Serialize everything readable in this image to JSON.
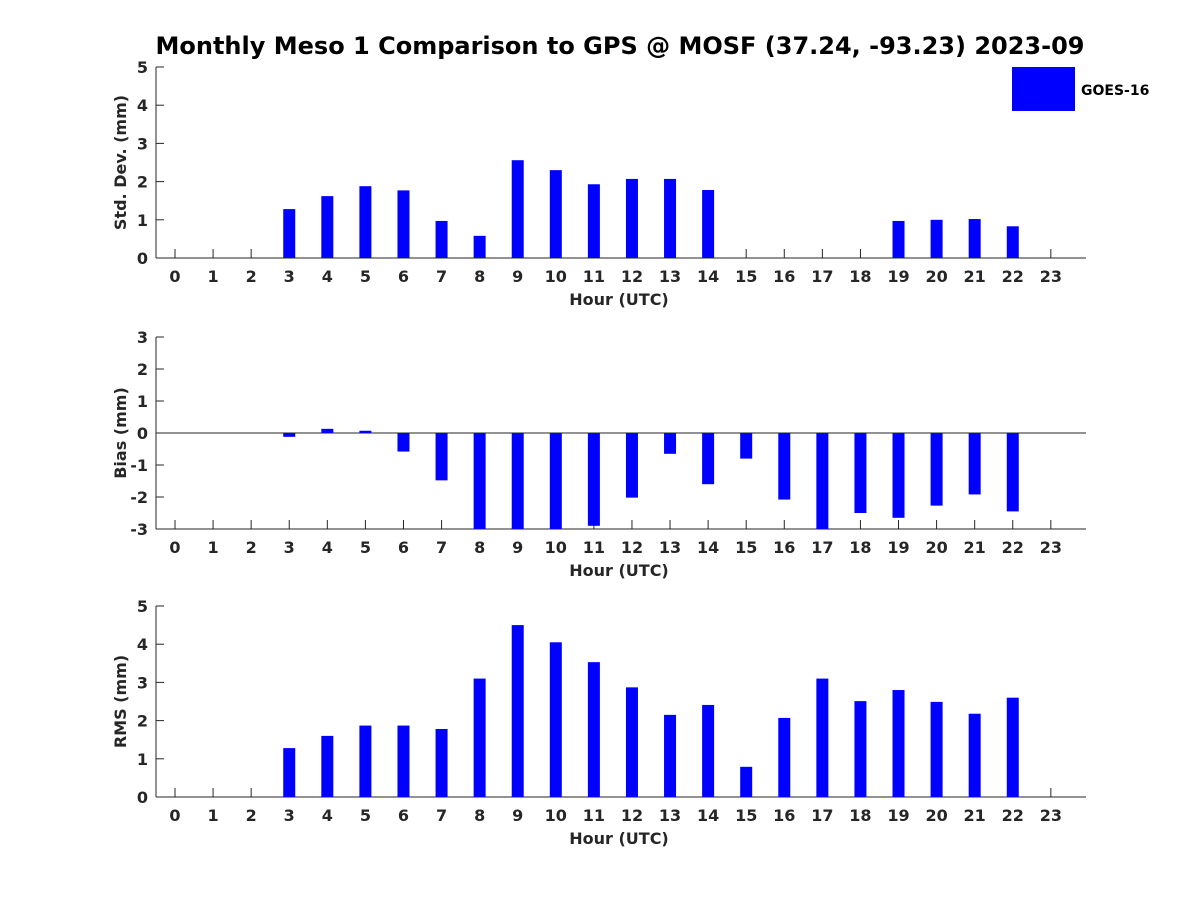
{
  "title": "Monthly Meso 1 Comparison to GPS @ MOSF (37.24, -93.23) 2023-09",
  "legend": {
    "label": "GOES-16",
    "color": "#0000ff"
  },
  "chart_data": [
    {
      "type": "bar",
      "ylabel": "Std. Dev. (mm)",
      "xlabel": "Hour (UTC)",
      "ylim": [
        0,
        5
      ],
      "yticks": [
        "0",
        "1",
        "2",
        "3",
        "4",
        "5"
      ],
      "categories": [
        "0",
        "1",
        "2",
        "3",
        "4",
        "5",
        "6",
        "7",
        "8",
        "9",
        "10",
        "11",
        "12",
        "13",
        "14",
        "15",
        "16",
        "17",
        "18",
        "19",
        "20",
        "21",
        "22",
        "23"
      ],
      "series": [
        {
          "name": "GOES-16",
          "values": [
            null,
            null,
            null,
            1.28,
            1.62,
            1.88,
            1.77,
            0.97,
            0.58,
            2.56,
            2.3,
            1.93,
            2.07,
            2.07,
            1.78,
            null,
            null,
            null,
            null,
            0.97,
            1.0,
            1.02,
            0.83,
            null
          ]
        }
      ],
      "zero_line": false,
      "legend": true
    },
    {
      "type": "bar",
      "ylabel": "Bias (mm)",
      "xlabel": "Hour (UTC)",
      "ylim": [
        -3,
        3
      ],
      "yticks": [
        "-3",
        "-2",
        "-1",
        "0",
        "1",
        "2",
        "3"
      ],
      "categories": [
        "0",
        "1",
        "2",
        "3",
        "4",
        "5",
        "6",
        "7",
        "8",
        "9",
        "10",
        "11",
        "12",
        "13",
        "14",
        "15",
        "16",
        "17",
        "18",
        "19",
        "20",
        "21",
        "22",
        "23"
      ],
      "series": [
        {
          "name": "GOES-16",
          "values": [
            null,
            null,
            null,
            -0.12,
            0.13,
            0.07,
            -0.58,
            -1.48,
            -3.0,
            -3.0,
            -3.0,
            -2.9,
            -2.02,
            -0.65,
            -1.6,
            -0.8,
            -2.08,
            -3.0,
            -2.5,
            -2.65,
            -2.27,
            -1.92,
            -2.45,
            null
          ]
        }
      ],
      "zero_line": true,
      "legend": false
    },
    {
      "type": "bar",
      "ylabel": "RMS (mm)",
      "xlabel": "Hour (UTC)",
      "ylim": [
        0,
        5
      ],
      "yticks": [
        "0",
        "1",
        "2",
        "3",
        "4",
        "5"
      ],
      "categories": [
        "0",
        "1",
        "2",
        "3",
        "4",
        "5",
        "6",
        "7",
        "8",
        "9",
        "10",
        "11",
        "12",
        "13",
        "14",
        "15",
        "16",
        "17",
        "18",
        "19",
        "20",
        "21",
        "22",
        "23"
      ],
      "series": [
        {
          "name": "GOES-16",
          "values": [
            null,
            null,
            null,
            1.28,
            1.6,
            1.87,
            1.87,
            1.78,
            3.1,
            4.5,
            4.05,
            3.53,
            2.87,
            2.15,
            2.41,
            0.79,
            2.07,
            3.1,
            2.51,
            2.8,
            2.49,
            2.18,
            2.6,
            null
          ]
        }
      ],
      "zero_line": false,
      "legend": false
    }
  ]
}
